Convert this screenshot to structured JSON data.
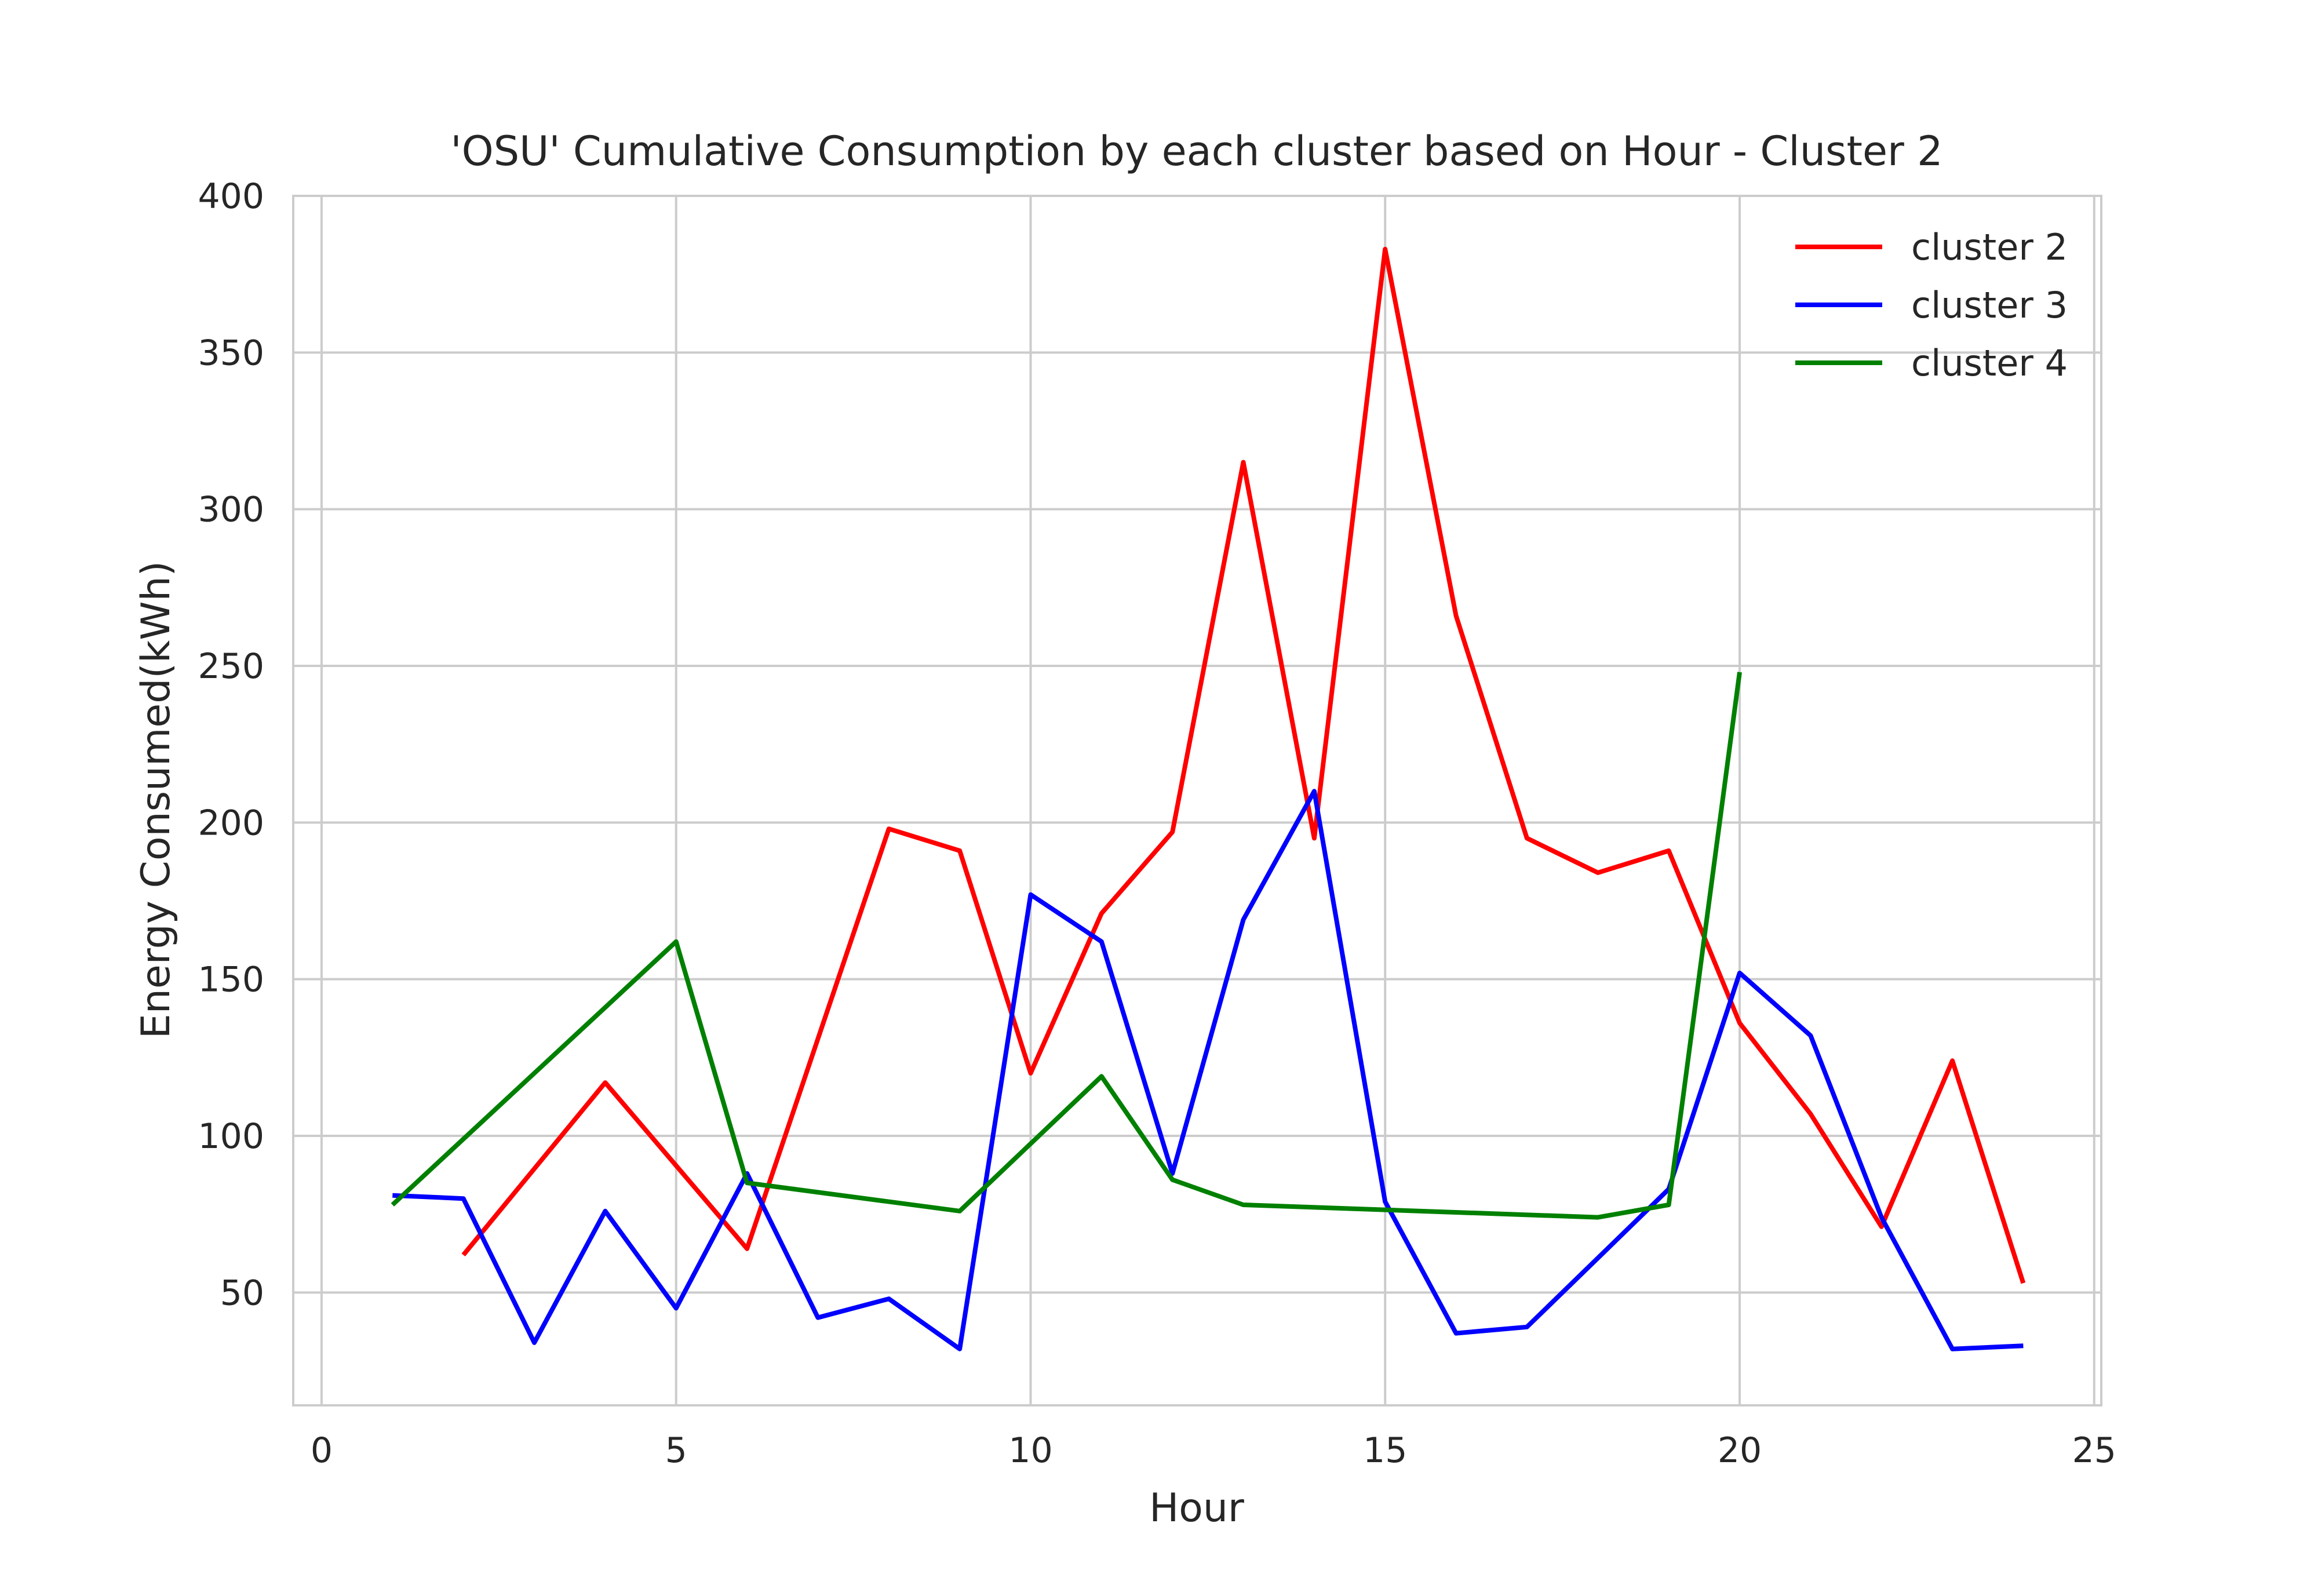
{
  "chart_data": {
    "type": "line",
    "title": "'OSU' Cumulative Consumption by each cluster based on Hour - Cluster 2",
    "xlabel": "Hour",
    "ylabel": "Energy Consumed(kWh)",
    "xlim": [
      -0.4,
      25.1
    ],
    "ylim": [
      14,
      400
    ],
    "xticks": [
      0,
      5,
      10,
      15,
      20,
      25
    ],
    "yticks": [
      50,
      100,
      150,
      200,
      250,
      300,
      350,
      400
    ],
    "grid": true,
    "legend_position": "top-right",
    "series": [
      {
        "name": "cluster 2",
        "color": "#ff0000",
        "x": [
          2,
          4,
          6,
          8,
          9,
          10,
          11,
          12,
          13,
          14,
          15,
          16,
          17,
          18,
          19,
          20,
          21,
          22,
          23,
          24
        ],
        "y": [
          62,
          117,
          64,
          198,
          191,
          120,
          171,
          197,
          315,
          195,
          383,
          266,
          195,
          184,
          191,
          136,
          107,
          71,
          124,
          53
        ]
      },
      {
        "name": "cluster 3",
        "color": "#0000ff",
        "x": [
          1,
          2,
          3,
          4,
          5,
          6,
          7,
          8,
          9,
          10,
          11,
          12,
          13,
          14,
          15,
          16,
          17,
          18,
          19,
          20,
          21,
          22,
          23,
          24
        ],
        "y": [
          81,
          80,
          34,
          76,
          45,
          88,
          42,
          48,
          32,
          177,
          162,
          88,
          169,
          210,
          79,
          37,
          39,
          61,
          83,
          152,
          132,
          74,
          32,
          33
        ]
      },
      {
        "name": "cluster 4",
        "color": "#008000",
        "x": [
          1,
          5,
          6,
          9,
          11,
          12,
          13,
          18,
          19,
          20
        ],
        "y": [
          78,
          162,
          85,
          76,
          119,
          86,
          78,
          74,
          78,
          248
        ]
      }
    ]
  }
}
